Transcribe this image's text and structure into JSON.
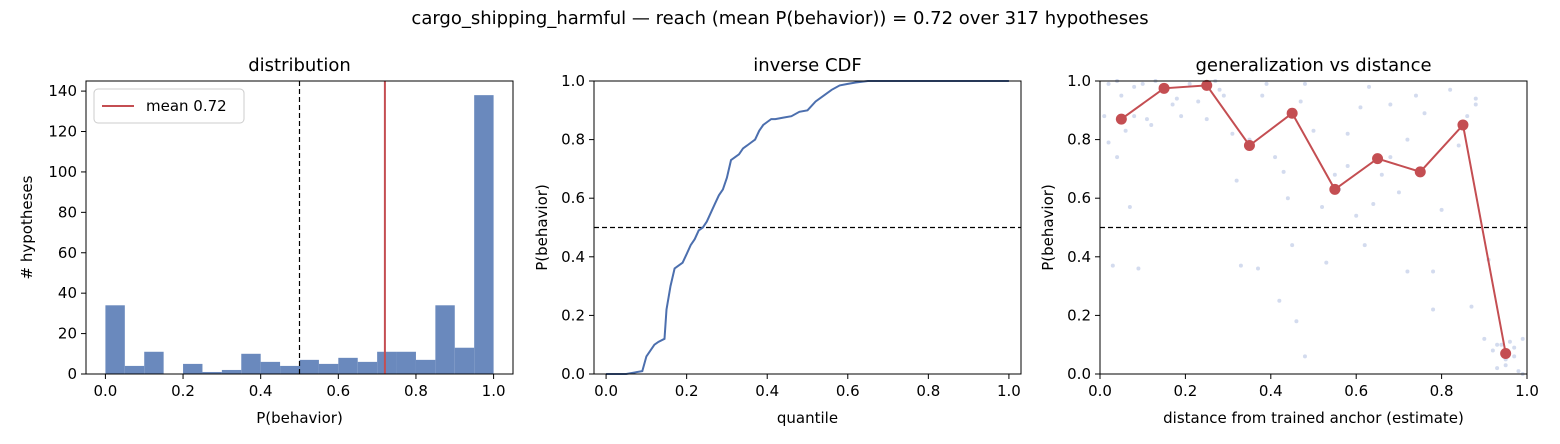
{
  "figure": {
    "suptitle": "cargo_shipping_harmful  —  reach (mean P(behavior)) = 0.72  over 317 hypotheses"
  },
  "colors": {
    "bar": "#6a89bd",
    "cdf": "#4c6fae",
    "mean": "#c44e52",
    "scatter": "#b5c3e3",
    "threshold": "#000000"
  },
  "chart_data": [
    {
      "type": "bar",
      "title": "distribution",
      "xlabel": "P(behavior)",
      "ylabel": "# hypotheses",
      "xlim": [
        -0.05,
        1.05
      ],
      "ylim": [
        0,
        145
      ],
      "xticks": [
        "0.0",
        "0.2",
        "0.4",
        "0.6",
        "0.8",
        "1.0"
      ],
      "yticks": [
        "0",
        "20",
        "40",
        "60",
        "80",
        "100",
        "120",
        "140"
      ],
      "bin_edges": [
        0.0,
        0.05,
        0.1,
        0.15,
        0.2,
        0.25,
        0.3,
        0.35,
        0.4,
        0.45,
        0.5,
        0.55,
        0.6,
        0.65,
        0.7,
        0.75,
        0.8,
        0.85,
        0.9,
        0.95,
        1.0
      ],
      "values": [
        34,
        4,
        11,
        0,
        5,
        1,
        2,
        10,
        6,
        4,
        7,
        5,
        8,
        6,
        11,
        11,
        7,
        34,
        13,
        138
      ],
      "threshold": 0.5,
      "mean": 0.72,
      "legend": [
        {
          "label": "mean 0.72"
        }
      ],
      "legend_position": "top-left",
      "grid": false
    },
    {
      "type": "line",
      "title": "inverse CDF",
      "xlabel": "quantile",
      "ylabel": "P(behavior)",
      "xlim": [
        -0.03,
        1.03
      ],
      "ylim": [
        0,
        1
      ],
      "xticks": [
        "0.0",
        "0.2",
        "0.4",
        "0.6",
        "0.8",
        "1.0"
      ],
      "yticks": [
        "0.0",
        "0.2",
        "0.4",
        "0.6",
        "0.8",
        "1.0"
      ],
      "threshold": 0.5,
      "x": [
        0.0,
        0.05,
        0.09,
        0.1,
        0.11,
        0.12,
        0.13,
        0.145,
        0.15,
        0.155,
        0.16,
        0.17,
        0.18,
        0.19,
        0.2,
        0.21,
        0.22,
        0.23,
        0.24,
        0.25,
        0.26,
        0.27,
        0.28,
        0.29,
        0.3,
        0.31,
        0.32,
        0.33,
        0.34,
        0.35,
        0.36,
        0.37,
        0.38,
        0.39,
        0.4,
        0.41,
        0.42,
        0.44,
        0.46,
        0.48,
        0.5,
        0.52,
        0.54,
        0.56,
        0.58,
        0.6,
        0.62,
        0.65,
        0.7,
        0.8,
        0.9,
        1.0
      ],
      "y": [
        0.0,
        0.0,
        0.01,
        0.06,
        0.08,
        0.1,
        0.11,
        0.12,
        0.22,
        0.26,
        0.3,
        0.36,
        0.37,
        0.38,
        0.41,
        0.44,
        0.46,
        0.49,
        0.5,
        0.52,
        0.55,
        0.58,
        0.61,
        0.63,
        0.67,
        0.73,
        0.74,
        0.75,
        0.77,
        0.78,
        0.79,
        0.8,
        0.83,
        0.85,
        0.86,
        0.87,
        0.87,
        0.875,
        0.88,
        0.895,
        0.9,
        0.93,
        0.95,
        0.97,
        0.985,
        0.99,
        0.995,
        1.0,
        1.0,
        1.0,
        1.0,
        1.0
      ],
      "grid": false
    },
    {
      "type": "scatter",
      "title": "generalization vs distance",
      "xlabel": "distance from trained anchor (estimate)",
      "ylabel": "P(behavior)",
      "xlim": [
        0,
        1
      ],
      "ylim": [
        0,
        1
      ],
      "xticks": [
        "0.0",
        "0.2",
        "0.4",
        "0.6",
        "0.8",
        "1.0"
      ],
      "yticks": [
        "0.0",
        "0.2",
        "0.4",
        "0.6",
        "0.8",
        "1.0"
      ],
      "threshold": 0.5,
      "series": [
        {
          "x": [
            0.05,
            0.15,
            0.25,
            0.35,
            0.45,
            0.55,
            0.65,
            0.75,
            0.85,
            0.95
          ],
          "y": [
            0.87,
            0.975,
            0.985,
            0.78,
            0.89,
            0.63,
            0.735,
            0.69,
            0.85,
            0.07
          ]
        }
      ],
      "points": {
        "x": [
          0.01,
          0.02,
          0.03,
          0.04,
          0.05,
          0.06,
          0.07,
          0.08,
          0.09,
          0.1,
          0.11,
          0.13,
          0.15,
          0.17,
          0.19,
          0.21,
          0.23,
          0.25,
          0.27,
          0.29,
          0.31,
          0.33,
          0.35,
          0.37,
          0.39,
          0.41,
          0.42,
          0.43,
          0.44,
          0.45,
          0.46,
          0.47,
          0.48,
          0.5,
          0.52,
          0.53,
          0.55,
          0.56,
          0.58,
          0.6,
          0.61,
          0.63,
          0.64,
          0.66,
          0.68,
          0.7,
          0.72,
          0.74,
          0.76,
          0.78,
          0.8,
          0.82,
          0.84,
          0.86,
          0.87,
          0.88,
          0.9,
          0.92,
          0.93,
          0.94,
          0.95,
          0.96,
          0.97,
          0.98,
          0.99,
          0.02,
          0.04,
          0.08,
          0.18,
          0.28,
          0.38,
          0.48,
          0.58,
          0.68,
          0.78,
          0.88,
          0.91,
          0.93,
          0.95,
          0.97,
          0.99,
          0.12,
          0.32,
          0.62,
          0.72
        ],
        "y": [
          0.88,
          0.79,
          0.37,
          0.74,
          0.95,
          0.83,
          0.57,
          0.98,
          0.36,
          0.99,
          0.87,
          1.0,
          0.97,
          0.92,
          0.88,
          0.99,
          0.93,
          0.87,
          1.0,
          0.95,
          0.82,
          0.37,
          0.8,
          0.36,
          0.99,
          0.74,
          0.25,
          0.69,
          0.6,
          0.44,
          0.18,
          0.93,
          0.06,
          0.83,
          0.57,
          0.38,
          0.68,
          0.63,
          0.71,
          0.54,
          0.91,
          0.98,
          0.58,
          0.68,
          0.92,
          0.62,
          0.8,
          0.95,
          0.89,
          0.22,
          0.56,
          0.97,
          0.78,
          0.88,
          0.23,
          0.94,
          0.12,
          0.08,
          0.02,
          0.1,
          0.05,
          0.11,
          0.09,
          0.01,
          0.0,
          0.99,
          1.0,
          0.88,
          0.94,
          0.97,
          0.95,
          0.99,
          0.82,
          0.74,
          0.35,
          0.92,
          0.39,
          0.1,
          0.03,
          0.06,
          0.12,
          0.85,
          0.66,
          0.44,
          0.35
        ]
      },
      "grid": false
    }
  ]
}
